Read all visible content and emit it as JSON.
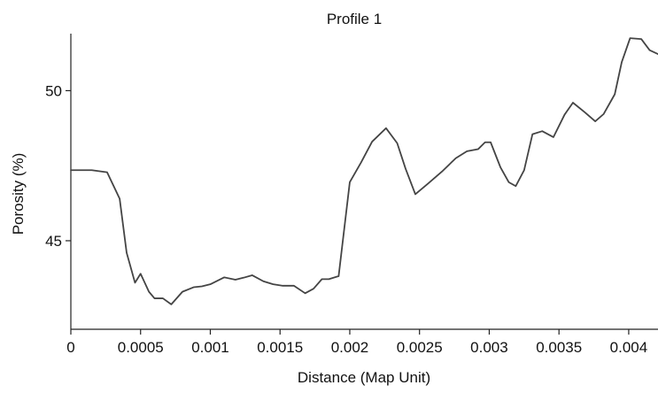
{
  "colors": {
    "background": "#ffffff",
    "axis": "#222222",
    "line": "#444444",
    "text": "#111111"
  },
  "chart_data": {
    "type": "line",
    "title": "Profile 1",
    "xlabel": "Distance (Map Unit)",
    "ylabel": "Porosity (%)",
    "xlim": [
      0,
      0.00421
    ],
    "ylim": [
      42.05,
      51.9
    ],
    "grid": false,
    "legend": "none",
    "x_ticks": [
      0,
      0.0005,
      0.001,
      0.0015,
      0.002,
      0.0025,
      0.003,
      0.0035,
      0.004
    ],
    "x_tick_labels": [
      "0",
      "0.0005",
      "0.001",
      "0.0015",
      "0.002",
      "0.0025",
      "0.003",
      "0.0035",
      "0.004"
    ],
    "y_ticks": [
      45,
      50
    ],
    "y_tick_labels": [
      "45",
      "50"
    ],
    "series": [
      {
        "x": [
          0,
          0.00015,
          0.00026,
          0.00035,
          0.0004,
          0.00046,
          0.0005,
          0.00056,
          0.0006,
          0.00066,
          0.00072,
          0.0008,
          0.00088,
          0.00094,
          0.001,
          0.0011,
          0.00118,
          0.00124,
          0.0013,
          0.00138,
          0.00145,
          0.00152,
          0.0016,
          0.00168,
          0.00174,
          0.0018,
          0.00185,
          0.00192,
          0.002,
          0.00208,
          0.00216,
          0.00226,
          0.00234,
          0.0024,
          0.00247,
          0.00256,
          0.00266,
          0.00276,
          0.00284,
          0.00292,
          0.00297,
          0.00301,
          0.00308,
          0.00314,
          0.00319,
          0.00325,
          0.00331,
          0.00338,
          0.00346,
          0.00354,
          0.0036,
          0.00368,
          0.00376,
          0.00382,
          0.0039,
          0.00395,
          0.00401,
          0.00409,
          0.00415,
          0.00421
        ],
        "values": [
          47.35,
          47.35,
          47.28,
          46.4,
          44.6,
          43.6,
          43.9,
          43.3,
          43.08,
          43.08,
          42.88,
          43.3,
          43.45,
          43.48,
          43.55,
          43.78,
          43.7,
          43.77,
          43.85,
          43.65,
          43.55,
          43.5,
          43.5,
          43.25,
          43.4,
          43.72,
          43.72,
          43.82,
          46.95,
          47.6,
          48.3,
          48.75,
          48.25,
          47.4,
          46.55,
          46.9,
          47.3,
          47.75,
          47.98,
          48.05,
          48.28,
          48.28,
          47.45,
          46.95,
          46.82,
          47.35,
          48.55,
          48.65,
          48.45,
          49.2,
          49.6,
          49.3,
          48.98,
          49.22,
          49.88,
          50.95,
          51.75,
          51.72,
          51.35,
          51.22
        ]
      }
    ]
  }
}
